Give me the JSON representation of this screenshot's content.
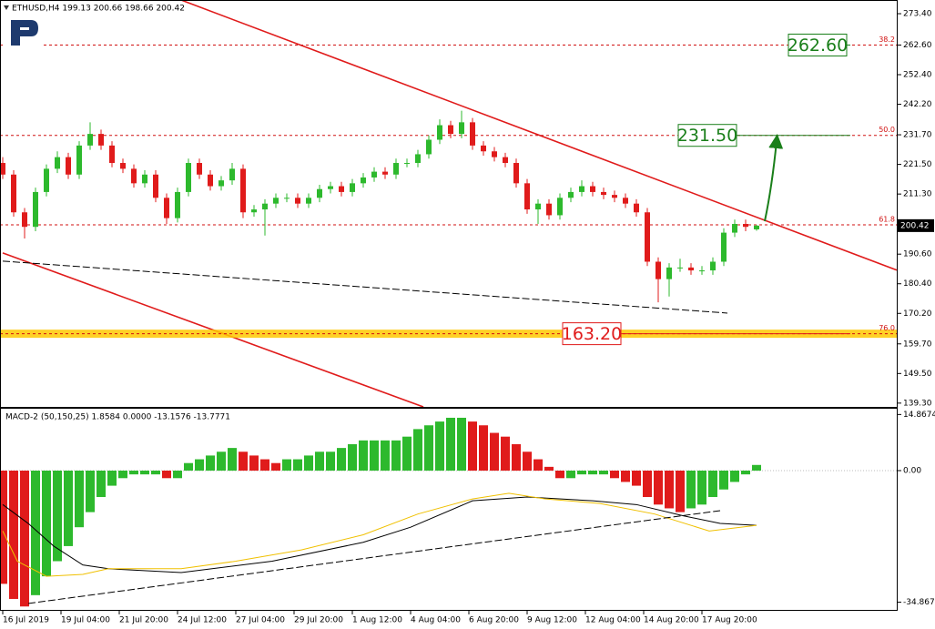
{
  "chart_data": [
    {
      "type": "candlestick",
      "title": "ETHUSD,H4  199.13 200.66 198.66 200.42",
      "up_color": "#2db92d",
      "down_color": "#e01b1b",
      "xlim": [
        0,
        245.5
      ],
      "ylim": [
        138.0,
        277.8
      ],
      "yticks": [
        {
          "value": 273.4,
          "label": "273.40"
        },
        {
          "value": 262.6,
          "label": "262.60"
        },
        {
          "value": 252.4,
          "label": "252.40"
        },
        {
          "value": 242.2,
          "label": "242.20"
        },
        {
          "value": 231.7,
          "label": "231.70"
        },
        {
          "value": 221.5,
          "label": "221.50"
        },
        {
          "value": 211.3,
          "label": "211.30"
        },
        {
          "value": 190.6,
          "label": "190.60"
        },
        {
          "value": 180.4,
          "label": "180.40"
        },
        {
          "value": 170.2,
          "label": "170.20"
        },
        {
          "value": 159.7,
          "label": "159.70"
        },
        {
          "value": 149.5,
          "label": "149.50"
        },
        {
          "value": 139.3,
          "label": "139.30"
        }
      ],
      "last_price": {
        "value": 200.42,
        "label": "200.42"
      },
      "x": [
        0,
        3,
        6,
        9,
        12,
        15,
        18,
        21,
        24,
        27,
        30,
        33,
        36,
        39,
        42,
        45,
        48,
        51,
        54,
        57,
        60,
        63,
        66,
        69,
        72,
        75,
        78,
        81,
        84,
        87,
        90,
        93,
        96,
        99,
        102,
        105,
        108,
        111,
        114,
        117,
        120,
        123,
        126,
        129,
        132,
        135,
        138,
        141,
        144,
        147,
        150,
        153,
        156,
        159,
        162,
        165,
        168,
        171,
        174,
        177,
        180,
        183,
        186,
        189,
        192,
        195,
        198,
        201,
        204,
        207
      ],
      "candles": [
        [
          222,
          224,
          216.5,
          218
        ],
        [
          218,
          219.5,
          203.5,
          205
        ],
        [
          205,
          206.5,
          196,
          200
        ],
        [
          200,
          213.5,
          198.5,
          212
        ],
        [
          212,
          221.5,
          210.5,
          220
        ],
        [
          220,
          226,
          218.5,
          224
        ],
        [
          224,
          225.5,
          216.5,
          218
        ],
        [
          218,
          229.5,
          216.5,
          228
        ],
        [
          228,
          236,
          226.5,
          232
        ],
        [
          232,
          233.5,
          226.5,
          228
        ],
        [
          228,
          229.5,
          220.5,
          222
        ],
        [
          222,
          223.5,
          218.5,
          220
        ],
        [
          220,
          221.5,
          213.5,
          215
        ],
        [
          215,
          219.5,
          213.5,
          218
        ],
        [
          218,
          219.5,
          208.5,
          210
        ],
        [
          210,
          211.5,
          201,
          203
        ],
        [
          203,
          213.5,
          201.5,
          212
        ],
        [
          212,
          223.5,
          210.5,
          222
        ],
        [
          222,
          223.5,
          216.5,
          218
        ],
        [
          218,
          219.5,
          212.5,
          214
        ],
        [
          214,
          217.5,
          212.5,
          216
        ],
        [
          216,
          222,
          214.5,
          220
        ],
        [
          220,
          221.5,
          203,
          205
        ],
        [
          205,
          207.5,
          203.5,
          206
        ],
        [
          206,
          209.5,
          197,
          208
        ],
        [
          208,
          211.5,
          206.5,
          210
        ],
        [
          210,
          211.5,
          208.5,
          210
        ],
        [
          210,
          211.5,
          206.5,
          208
        ],
        [
          208,
          211.5,
          206.5,
          210
        ],
        [
          210,
          214.5,
          208.5,
          213
        ],
        [
          213,
          215.5,
          211.5,
          214
        ],
        [
          214,
          215.5,
          210.5,
          212
        ],
        [
          212,
          216.5,
          210.5,
          215
        ],
        [
          215,
          218.5,
          213.5,
          217
        ],
        [
          217,
          220.5,
          215.5,
          219
        ],
        [
          219,
          220.5,
          216.5,
          218
        ],
        [
          218,
          223.5,
          216.5,
          222
        ],
        [
          222,
          223.5,
          220.5,
          222
        ],
        [
          222,
          226.5,
          220.5,
          225
        ],
        [
          225,
          231.5,
          223.5,
          230
        ],
        [
          230,
          237,
          228.5,
          235
        ],
        [
          235,
          236.5,
          230.5,
          232
        ],
        [
          232,
          240,
          230.5,
          236
        ],
        [
          236,
          237.5,
          226.5,
          228
        ],
        [
          228,
          229.5,
          224.5,
          226
        ],
        [
          226,
          227.5,
          222.5,
          224
        ],
        [
          224,
          225.5,
          220.5,
          222
        ],
        [
          222,
          223.5,
          213.5,
          215
        ],
        [
          215,
          216.5,
          204.5,
          206
        ],
        [
          206,
          209.5,
          201,
          208
        ],
        [
          208,
          209.5,
          202.5,
          204
        ],
        [
          204,
          211.5,
          202.5,
          210
        ],
        [
          210,
          213.5,
          208.5,
          212
        ],
        [
          212,
          216,
          210.5,
          214
        ],
        [
          214,
          215.5,
          210.5,
          212
        ],
        [
          212,
          213.5,
          209.5,
          211
        ],
        [
          211,
          212.5,
          208.5,
          210
        ],
        [
          210,
          211.5,
          206.5,
          208
        ],
        [
          208,
          209.5,
          203.5,
          205
        ],
        [
          205,
          206.5,
          186.5,
          188
        ],
        [
          188,
          189.5,
          174,
          182
        ],
        [
          182,
          187.5,
          176,
          186
        ],
        [
          186,
          189,
          184.5,
          186
        ],
        [
          186,
          187.5,
          183.5,
          185
        ],
        [
          185,
          186.5,
          183.5,
          185
        ],
        [
          185,
          189.5,
          183.5,
          188
        ],
        [
          188,
          199.5,
          186.5,
          198
        ],
        [
          198,
          202.5,
          196.5,
          201
        ],
        [
          201,
          202.5,
          198.5,
          200
        ],
        [
          199.13,
          200.66,
          198.66,
          200.42
        ]
      ],
      "levels": [
        {
          "value": 262.6,
          "fib": "38.2",
          "box": "262.60",
          "color": "#d01010",
          "box_color": "#1a7f1a"
        },
        {
          "value": 231.5,
          "fib": "50.0",
          "box": "231.50",
          "color": "#d01010",
          "box_color": "#1a7f1a"
        },
        {
          "value": 200.7,
          "fib": "61.8",
          "color": "#d01010"
        },
        {
          "value": 163.2,
          "fib": "76.0",
          "box": "163.20",
          "color": "#d01010",
          "box_color": "#e01b1b",
          "band": "#ffc800"
        }
      ],
      "trendlines": [
        {
          "color": "#e01b1b",
          "x": [
            49,
            245.5
          ],
          "y": [
            278.1,
            185.1
          ]
        },
        {
          "color": "#e01b1b",
          "x": [
            0,
            115.5
          ],
          "y": [
            191.0,
            138.0
          ]
        },
        {
          "color": "#000000",
          "dash": true,
          "x": [
            0,
            199
          ],
          "y": [
            188.2,
            170.3
          ]
        }
      ]
    },
    {
      "type": "macd",
      "title": "MACD-2 (50,150,25) 1.8584 0.0000 -13.1576 -13.7771",
      "up_color": "#2db92d",
      "down_color": "#e01b1b",
      "xlim": [
        0,
        245.5
      ],
      "ylim": [
        -36.9,
        16.4
      ],
      "yticks": [
        14.8674,
        {
          "value": 0,
          "label": "0.00"
        },
        -34.8674
      ],
      "xticks": [
        {
          "value": 0,
          "label": "16 Jul 2019"
        },
        {
          "value": 16,
          "label": "19 Jul 04:00"
        },
        {
          "value": 32,
          "label": "21 Jul 20:00"
        },
        {
          "value": 48,
          "label": "24 Jul 12:00"
        },
        {
          "value": 64,
          "label": "27 Jul 04:00"
        },
        {
          "value": 80,
          "label": "29 Jul 20:00"
        },
        {
          "value": 96,
          "label": "1 Aug 12:00"
        },
        {
          "value": 112,
          "label": "4 Aug 04:00"
        },
        {
          "value": 128,
          "label": "6 Aug 20:00"
        },
        {
          "value": 144,
          "label": "9 Aug 12:00"
        },
        {
          "value": 160,
          "label": "12 Aug 04:00"
        },
        {
          "value": 176,
          "label": "14 Aug 20:00"
        },
        {
          "value": 192,
          "label": "17 Aug 20:00"
        }
      ],
      "x": [
        0,
        3,
        6,
        9,
        12,
        15,
        18,
        21,
        24,
        27,
        30,
        33,
        36,
        39,
        42,
        45,
        48,
        51,
        54,
        57,
        60,
        63,
        66,
        69,
        72,
        75,
        78,
        81,
        84,
        87,
        90,
        93,
        96,
        99,
        102,
        105,
        108,
        111,
        114,
        117,
        120,
        123,
        126,
        129,
        132,
        135,
        138,
        141,
        144,
        147,
        150,
        153,
        156,
        159,
        162,
        165,
        168,
        171,
        174,
        177,
        180,
        183,
        186,
        189,
        192,
        195,
        198,
        201,
        204,
        207
      ],
      "values": [
        -30,
        -34,
        -36,
        -33,
        -28,
        -24,
        -20,
        -15,
        -11,
        -7,
        -4,
        -2,
        -1,
        -1,
        -1,
        -2,
        -2,
        2,
        3,
        4,
        5,
        6,
        5,
        4,
        3,
        2,
        3,
        3,
        4,
        5,
        5,
        6,
        7,
        8,
        8,
        8,
        8,
        9,
        11,
        12,
        13,
        14,
        14,
        13,
        12,
        10,
        9,
        7,
        5,
        3,
        1,
        -2,
        -2,
        -1,
        -1,
        -1,
        -2,
        -3,
        -4,
        -7,
        -9,
        -10,
        -11,
        -10,
        -9,
        -7,
        -5,
        -3,
        -1,
        1.5
      ],
      "series": [
        {
          "color": "#000000",
          "x": [
            0,
            7,
            14,
            22,
            29,
            49,
            74,
            99,
            112,
            129,
            144,
            162,
            174,
            187,
            197,
            207
          ],
          "values": [
            -9,
            -14,
            -20,
            -25,
            -26,
            -27,
            -24,
            -19,
            -15,
            -8,
            -7,
            -8,
            -9,
            -12,
            -14,
            -14.5
          ]
        },
        {
          "color": "#f0c000",
          "x": [
            0,
            4,
            12,
            22,
            29,
            49,
            64,
            82,
            99,
            114,
            129,
            139,
            149,
            164,
            179,
            194,
            207
          ],
          "values": [
            -16,
            -24,
            -28,
            -27.5,
            -26,
            -26,
            -24,
            -21,
            -17,
            -11.5,
            -7.5,
            -6,
            -7.5,
            -8.7,
            -11.5,
            -16,
            -14.5
          ]
        }
      ],
      "trendline": {
        "color": "#000000",
        "dash": true,
        "x": [
          7,
          197
        ],
        "y": [
          -35.2,
          -10.6
        ]
      }
    }
  ]
}
